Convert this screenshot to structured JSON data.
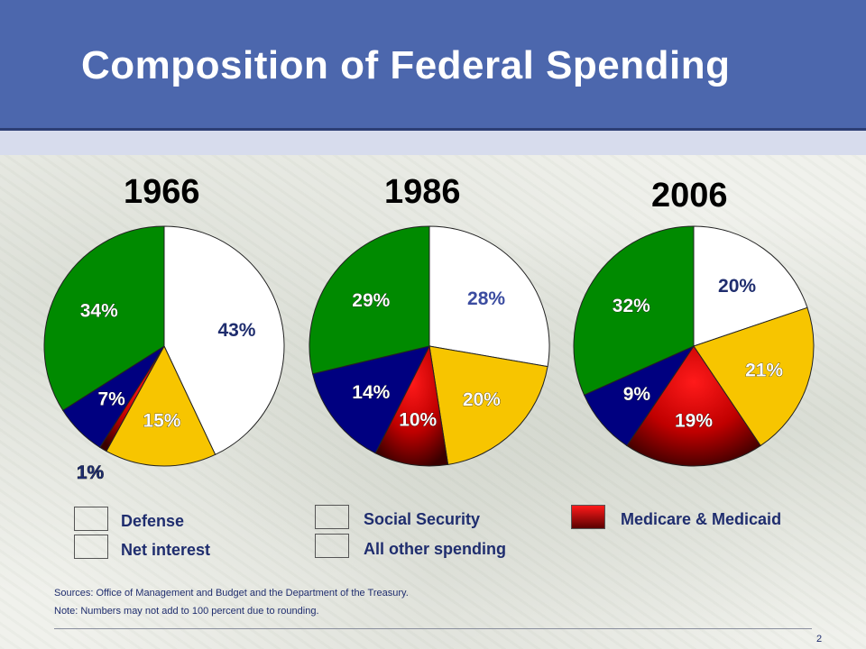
{
  "slide": {
    "title": "Composition of Federal Spending",
    "sources": "Sources: Office of Management and Budget and the Department of the Treasury.",
    "note": "Note:  Numbers may not add to 100 percent due to rounding.",
    "page_number": "2"
  },
  "legend": [
    {
      "label": "Defense",
      "color": "#ffffff"
    },
    {
      "label": "Net interest",
      "color": "#000080"
    },
    {
      "label": "Social Security",
      "color": "#f7c500"
    },
    {
      "label": "All other spending",
      "color": "#008a00"
    },
    {
      "label": "Medicare & Medicaid",
      "color": "#e60000"
    }
  ],
  "chart_data": [
    {
      "type": "pie",
      "title": "1966",
      "slices": [
        {
          "category": "Defense",
          "value": 43,
          "label": "43%",
          "color": "#ffffff"
        },
        {
          "category": "Social Security",
          "value": 15,
          "label": "15%",
          "color": "#f7c500"
        },
        {
          "category": "Medicare & Medicaid",
          "value": 1,
          "label": "1%",
          "color": "#e60000"
        },
        {
          "category": "Net interest",
          "value": 7,
          "label": "7%",
          "color": "#000080"
        },
        {
          "category": "All other spending",
          "value": 34,
          "label": "34%",
          "color": "#008a00"
        }
      ]
    },
    {
      "type": "pie",
      "title": "1986",
      "slices": [
        {
          "category": "Defense",
          "value": 28,
          "label": "28%",
          "color": "#ffffff"
        },
        {
          "category": "Social Security",
          "value": 20,
          "label": "20%",
          "color": "#f7c500"
        },
        {
          "category": "Medicare & Medicaid",
          "value": 10,
          "label": "10%",
          "color": "#e60000"
        },
        {
          "category": "Net interest",
          "value": 14,
          "label": "14%",
          "color": "#000080"
        },
        {
          "category": "All other spending",
          "value": 29,
          "label": "29%",
          "color": "#008a00"
        }
      ]
    },
    {
      "type": "pie",
      "title": "2006",
      "slices": [
        {
          "category": "Defense",
          "value": 20,
          "label": "20%",
          "color": "#ffffff"
        },
        {
          "category": "Social Security",
          "value": 21,
          "label": "21%",
          "color": "#f7c500"
        },
        {
          "category": "Medicare & Medicaid",
          "value": 19,
          "label": "19%",
          "color": "#e60000"
        },
        {
          "category": "Net interest",
          "value": 9,
          "label": "9%",
          "color": "#000080"
        },
        {
          "category": "All other spending",
          "value": 32,
          "label": "32%",
          "color": "#008a00"
        }
      ]
    }
  ]
}
